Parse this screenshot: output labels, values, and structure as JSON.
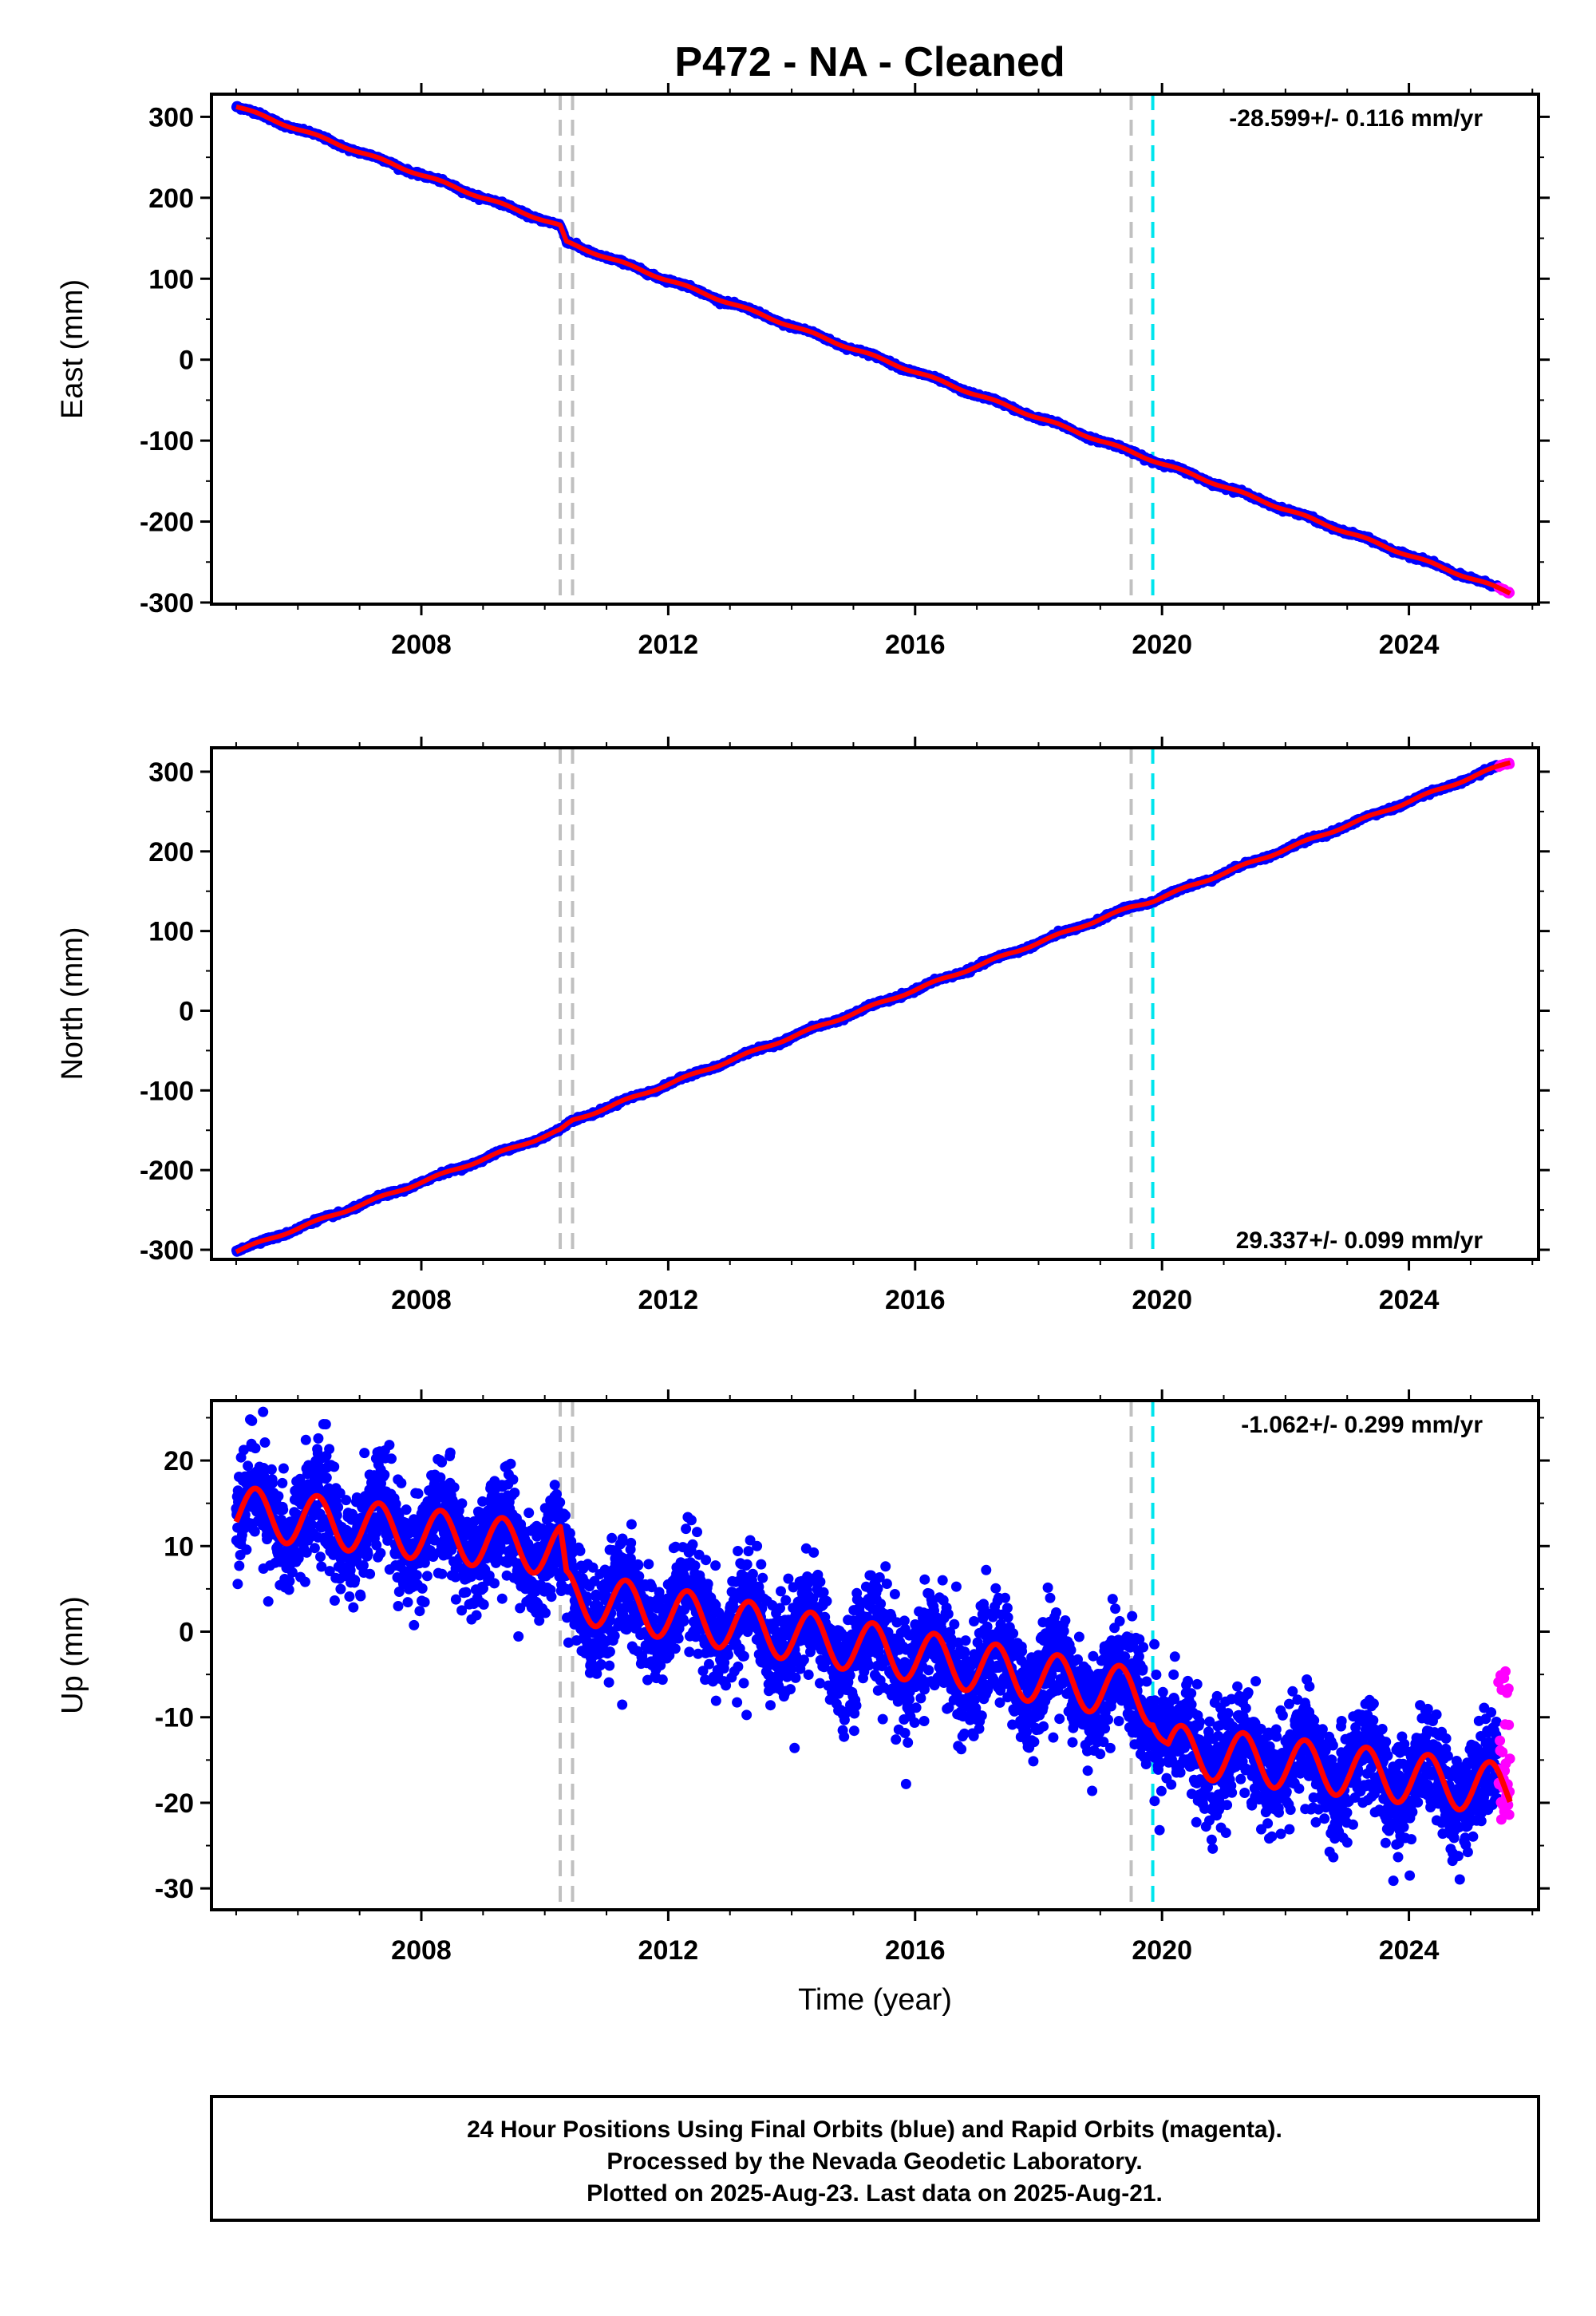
{
  "title": "P472  - NA - Cleaned",
  "footer": {
    "lines": [
      "24 Hour Positions Using Final Orbits (blue) and Rapid Orbits (magenta).",
      "Processed by the Nevada Geodetic Laboratory.",
      "Plotted on 2025-Aug-23. Last data on 2025-Aug-21."
    ]
  },
  "colors": {
    "final_orbits": "#0000ff",
    "rapid_orbits": "#ff00ff",
    "model_fit": "#ff0000",
    "equipment_change": "#c0c0c0",
    "earthquake": "#00e5ee"
  },
  "chart_data": [
    {
      "type": "scatter",
      "ylabel": "East (mm)",
      "xlabel": "",
      "xlim": [
        2004.6,
        2026.1
      ],
      "ylim": [
        -302,
        328
      ],
      "x_ticks": [
        2008,
        2012,
        2016,
        2020,
        2024
      ],
      "y_ticks": [
        -300,
        -200,
        -100,
        0,
        100,
        200,
        300
      ],
      "grid": false,
      "rate_text": "-28.599+/- 0.116 mm/yr",
      "rate_position": "top-right",
      "vertical_lines": [
        {
          "x": 2010.25,
          "kind": "equipment_change"
        },
        {
          "x": 2010.45,
          "kind": "equipment_change"
        },
        {
          "x": 2019.5,
          "kind": "equipment_change"
        },
        {
          "x": 2019.85,
          "kind": "earthquake"
        }
      ],
      "trend": {
        "start_year": 2005.0,
        "end_year": 2025.64,
        "points": [
          [
            2005.0,
            313
          ],
          [
            2010.25,
            165
          ],
          [
            2010.35,
            145
          ],
          [
            2025.64,
            -288
          ]
        ],
        "seasonal_amplitude": 1.5,
        "noise": 1.2
      },
      "rapid": {
        "start_year": 2025.45,
        "end_year": 2025.64
      }
    },
    {
      "type": "scatter",
      "ylabel": "North (mm)",
      "xlabel": "",
      "xlim": [
        2004.6,
        2026.1
      ],
      "ylim": [
        -312,
        330
      ],
      "x_ticks": [
        2008,
        2012,
        2016,
        2020,
        2024
      ],
      "y_ticks": [
        -300,
        -200,
        -100,
        0,
        100,
        200,
        300
      ],
      "grid": false,
      "rate_text": "29.337+/- 0.099 mm/yr",
      "rate_position": "bottom-right",
      "vertical_lines": [
        {
          "x": 2010.25,
          "kind": "equipment_change"
        },
        {
          "x": 2010.45,
          "kind": "equipment_change"
        },
        {
          "x": 2019.5,
          "kind": "equipment_change"
        },
        {
          "x": 2019.85,
          "kind": "earthquake"
        }
      ],
      "trend": {
        "start_year": 2005.0,
        "end_year": 2025.64,
        "points": [
          [
            2005.0,
            -302
          ],
          [
            2010.25,
            -150
          ],
          [
            2010.45,
            -138
          ],
          [
            2019.5,
            130
          ],
          [
            2019.85,
            138
          ],
          [
            2025.64,
            312
          ]
        ],
        "seasonal_amplitude": 1.5,
        "noise": 1.2
      },
      "rapid": {
        "start_year": 2025.45,
        "end_year": 2025.64
      }
    },
    {
      "type": "scatter",
      "ylabel": "Up (mm)",
      "xlabel": "Time (year)",
      "xlim": [
        2004.6,
        2026.1
      ],
      "ylim": [
        -32.5,
        27
      ],
      "x_ticks": [
        2008,
        2012,
        2016,
        2020,
        2024
      ],
      "y_ticks": [
        -30,
        -20,
        -10,
        0,
        10,
        20
      ],
      "grid": false,
      "rate_text": "-1.062+/- 0.299 mm/yr",
      "rate_position": "top-right",
      "vertical_lines": [
        {
          "x": 2010.25,
          "kind": "equipment_change"
        },
        {
          "x": 2010.45,
          "kind": "equipment_change"
        },
        {
          "x": 2019.5,
          "kind": "equipment_change"
        },
        {
          "x": 2019.85,
          "kind": "earthquake"
        }
      ],
      "trend": {
        "start_year": 2005.0,
        "end_year": 2025.64,
        "points": [
          [
            2005.0,
            14
          ],
          [
            2010.25,
            9.5
          ],
          [
            2010.35,
            4.2
          ],
          [
            2019.5,
            -7.2
          ],
          [
            2019.85,
            -8.0
          ],
          [
            2020.1,
            -13.8
          ],
          [
            2025.64,
            -18.5
          ]
        ],
        "seasonal_amplitude": 3.0,
        "noise": 3.0
      },
      "rapid": {
        "start_year": 2025.45,
        "end_year": 2025.64,
        "values_low": -22,
        "values_high": -4.5
      }
    }
  ]
}
